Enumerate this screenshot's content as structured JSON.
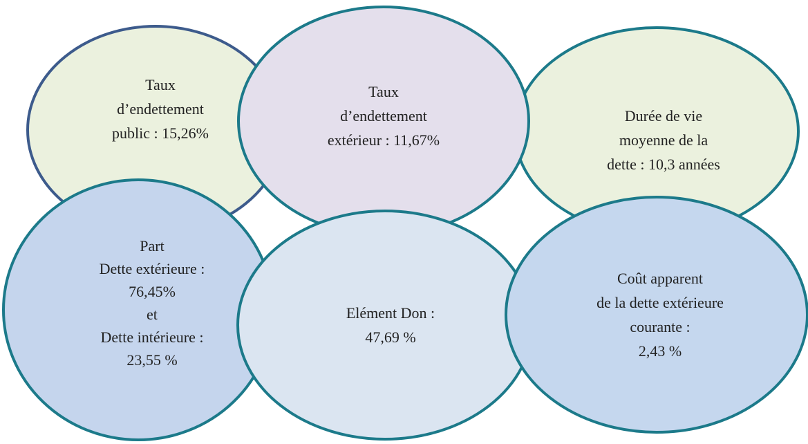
{
  "nodes": [
    {
      "lines": [
        "Taux",
        "d’endettement",
        "public : 15,26%"
      ]
    },
    {
      "lines": [
        "Taux",
        "d’endettement",
        "extérieur : 11,67%"
      ]
    },
    {
      "lines": [
        "Durée de vie",
        "moyenne de la",
        "dette : 10,3 années"
      ]
    },
    {
      "lines": [
        "Part",
        "Dette extérieure :",
        "76,45%",
        "et",
        "Dette intérieure :",
        "23,55 %"
      ]
    },
    {
      "lines": [
        "Elément Don :",
        "47,69 %"
      ]
    },
    {
      "lines": [
        "Coût apparent",
        "de la dette extérieure",
        "courante :",
        "2,43 %"
      ]
    }
  ]
}
